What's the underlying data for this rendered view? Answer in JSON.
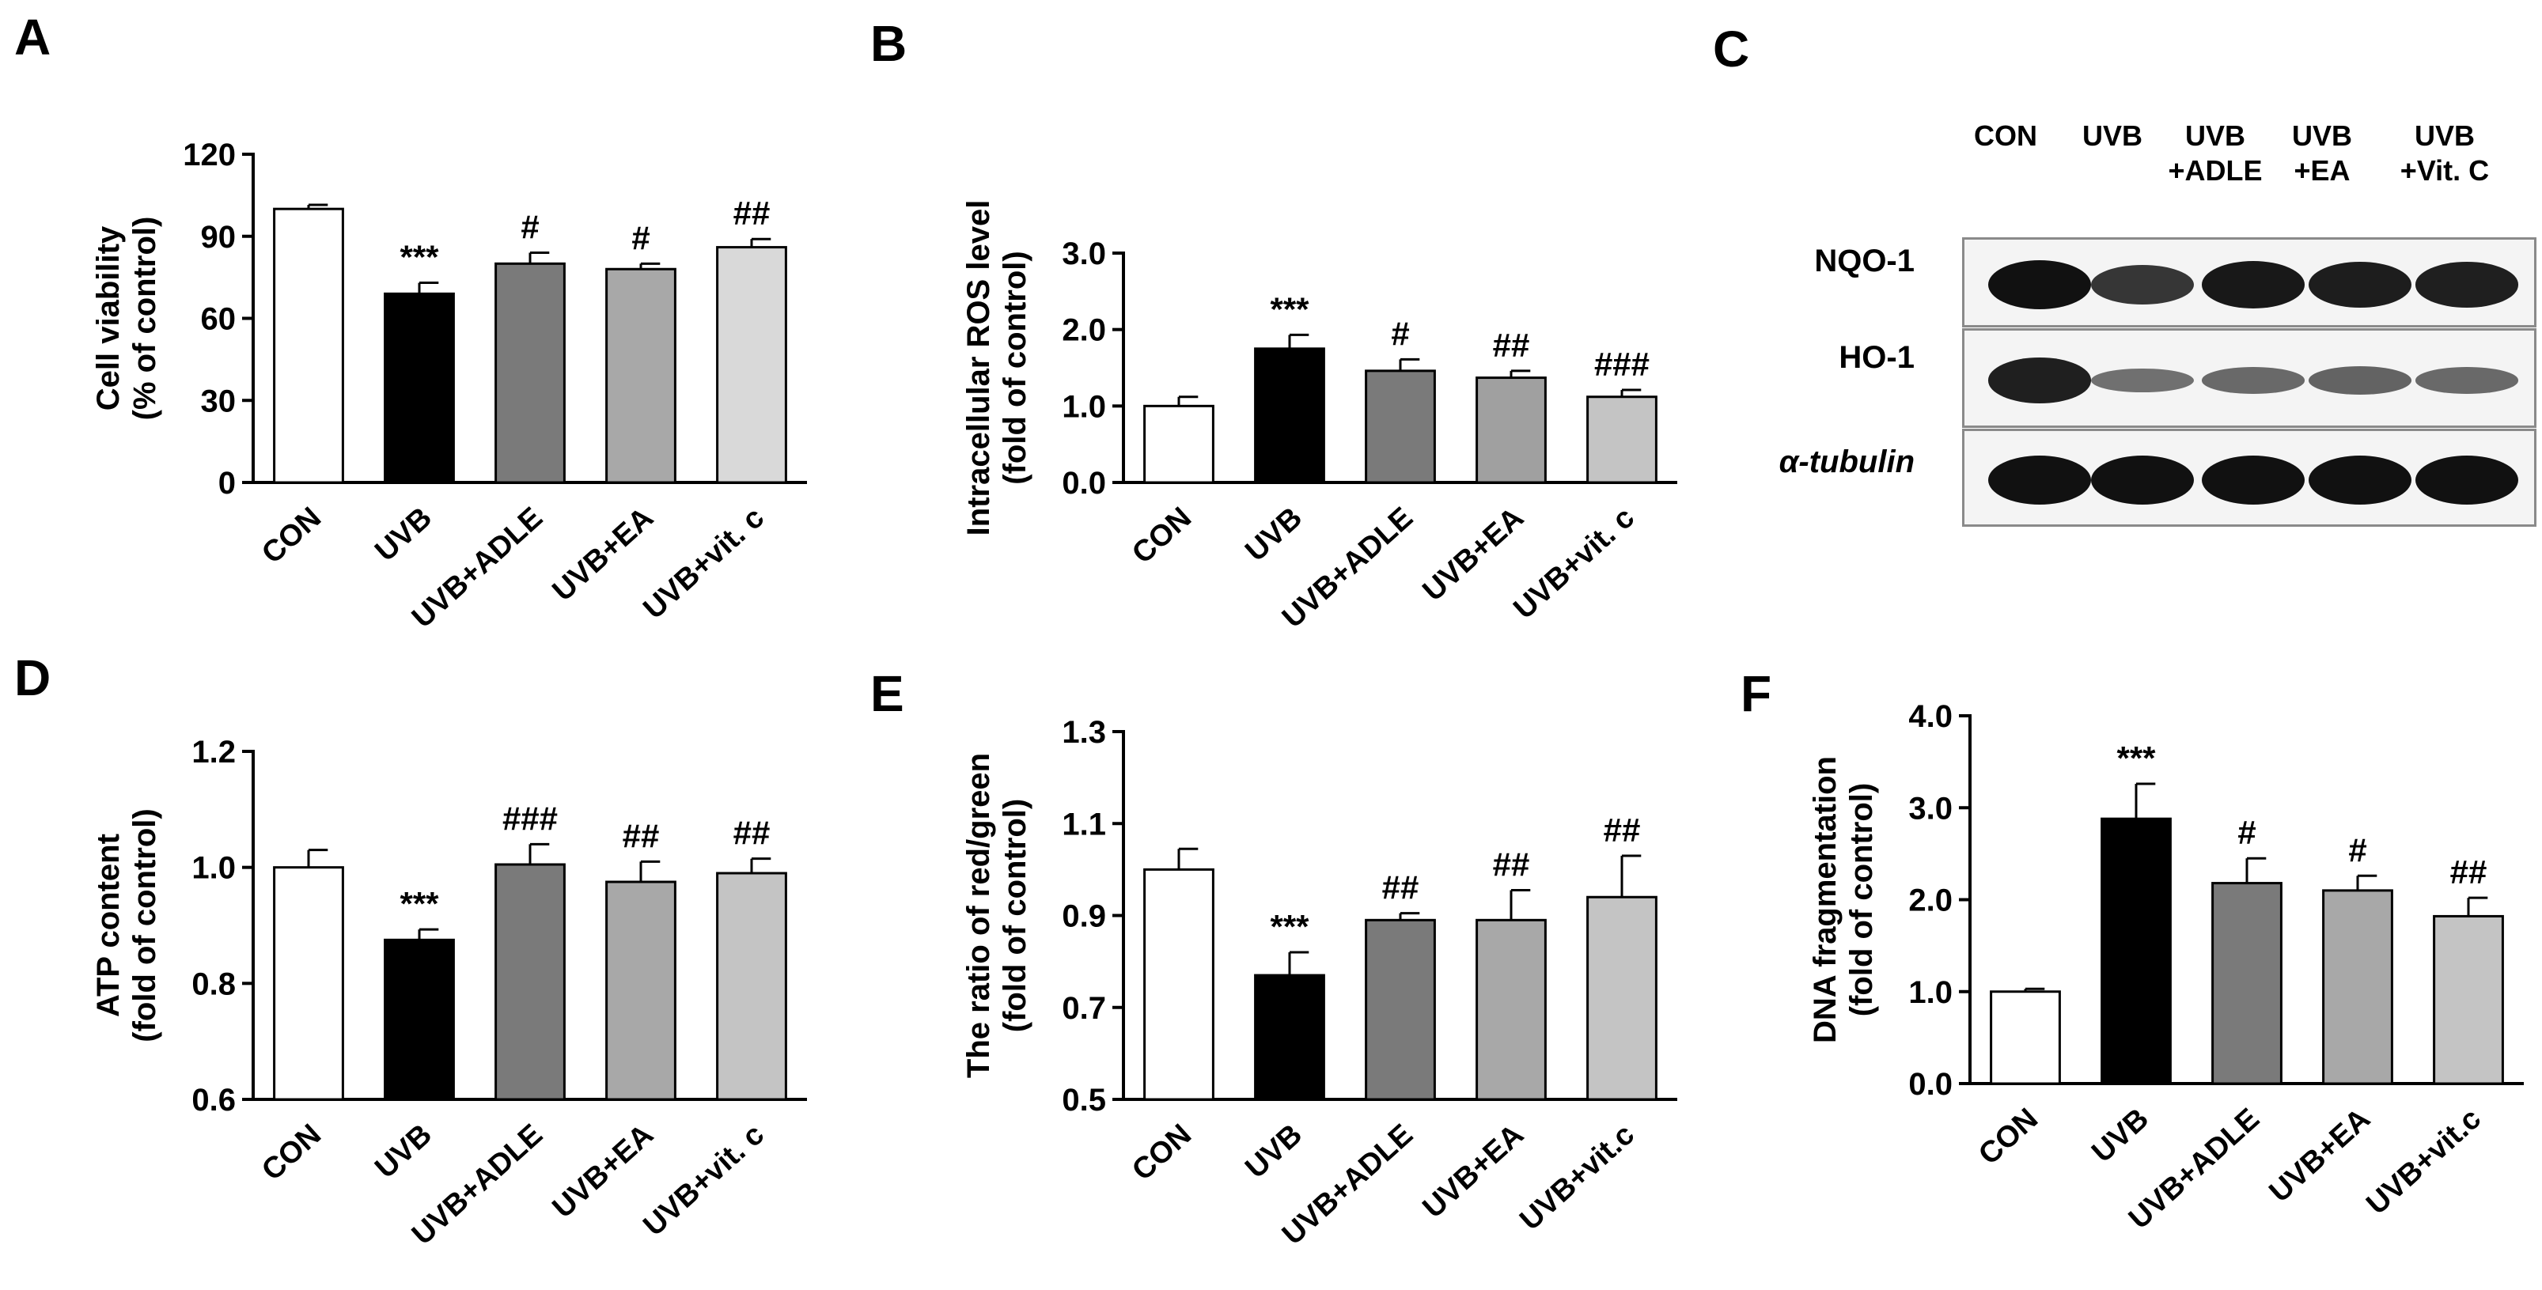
{
  "panels": {
    "A": {
      "letter": "A"
    },
    "B": {
      "letter": "B"
    },
    "C": {
      "letter": "C"
    },
    "D": {
      "letter": "D"
    },
    "E": {
      "letter": "E"
    },
    "F": {
      "letter": "F"
    }
  },
  "chart_data": [
    {
      "id": "A",
      "type": "bar",
      "categories": [
        "CON",
        "UVB",
        "UVB+ADLE",
        "UVB+EA",
        "UVB+vit. c"
      ],
      "values": [
        100,
        69,
        80,
        78,
        86
      ],
      "errors": [
        1.5,
        4,
        4,
        2,
        3
      ],
      "annotations": [
        "",
        "***",
        "#",
        "#",
        "##"
      ],
      "colors": [
        "#ffffff",
        "#000000",
        "#7a7a7a",
        "#a8a8a8",
        "#d9d9d9"
      ],
      "ylabel": [
        "Cell viability",
        "(% of control)"
      ],
      "ylim": [
        0,
        120
      ],
      "yticks": [
        "0",
        "30",
        "60",
        "90",
        "120"
      ],
      "ytick_values": [
        0,
        30,
        60,
        90,
        120
      ]
    },
    {
      "id": "B",
      "type": "bar",
      "categories": [
        "CON",
        "UVB",
        "UVB+ADLE",
        "UVB+EA",
        "UVB+vit. c"
      ],
      "values": [
        1.0,
        1.75,
        1.46,
        1.37,
        1.12
      ],
      "errors": [
        0.12,
        0.18,
        0.15,
        0.09,
        0.09
      ],
      "annotations": [
        "",
        "***",
        "#",
        "##",
        "###"
      ],
      "colors": [
        "#ffffff",
        "#000000",
        "#7a7a7a",
        "#a0a0a0",
        "#c4c4c4"
      ],
      "ylabel": [
        "Intracellular ROS level",
        "(fold of control)"
      ],
      "ylim": [
        0,
        3
      ],
      "yticks": [
        "0.0",
        "1.0",
        "2.0",
        "3.0"
      ],
      "ytick_values": [
        0,
        1,
        2,
        3
      ]
    },
    {
      "id": "D",
      "type": "bar",
      "categories": [
        "CON",
        "UVB",
        "UVB+ADLE",
        "UVB+EA",
        "UVB+vit. c"
      ],
      "values": [
        1.0,
        0.875,
        1.005,
        0.975,
        0.99
      ],
      "errors": [
        0.03,
        0.018,
        0.035,
        0.035,
        0.025
      ],
      "annotations": [
        "",
        "***",
        "###",
        "##",
        "##"
      ],
      "colors": [
        "#ffffff",
        "#000000",
        "#7a7a7a",
        "#a8a8a8",
        "#c4c4c4"
      ],
      "ylabel": [
        "ATP content",
        "(fold of control)"
      ],
      "ylim": [
        0.6,
        1.2
      ],
      "yticks": [
        "0.6",
        "0.8",
        "1.0",
        "1.2"
      ],
      "ytick_values": [
        0.6,
        0.8,
        1.0,
        1.2
      ]
    },
    {
      "id": "E",
      "type": "bar",
      "categories": [
        "CON",
        "UVB",
        "UVB+ADLE",
        "UVB+EA",
        "UVB+vit.c"
      ],
      "values": [
        1.0,
        0.77,
        0.89,
        0.89,
        0.94
      ],
      "errors": [
        0.045,
        0.05,
        0.015,
        0.065,
        0.09
      ],
      "annotations": [
        "",
        "***",
        "##",
        "##",
        "##"
      ],
      "colors": [
        "#ffffff",
        "#000000",
        "#7a7a7a",
        "#a8a8a8",
        "#c4c4c4"
      ],
      "ylabel": [
        "The ratio of red/green",
        "(fold of control)"
      ],
      "ylim": [
        0.5,
        1.3
      ],
      "yticks": [
        "0.5",
        "0.7",
        "0.9",
        "1.1",
        "1.3"
      ],
      "ytick_values": [
        0.5,
        0.7,
        0.9,
        1.1,
        1.3
      ]
    },
    {
      "id": "F",
      "type": "bar",
      "categories": [
        "CON",
        "UVB",
        "UVB+ADLE",
        "UVB+EA",
        "UVB+vit.c"
      ],
      "values": [
        1.0,
        2.88,
        2.18,
        2.1,
        1.82
      ],
      "errors": [
        0.03,
        0.38,
        0.27,
        0.16,
        0.2
      ],
      "annotations": [
        "",
        "***",
        "#",
        "#",
        "##"
      ],
      "colors": [
        "#ffffff",
        "#000000",
        "#7a7a7a",
        "#a8a8a8",
        "#c4c4c4"
      ],
      "ylabel": [
        "DNA fragmentation",
        "(fold of control)"
      ],
      "ylim": [
        0,
        4
      ],
      "yticks": [
        "0.0",
        "1.0",
        "2.0",
        "3.0",
        "4.0"
      ],
      "ytick_values": [
        0,
        1,
        2,
        3,
        4
      ]
    }
  ],
  "western_blot": {
    "lanes": [
      "CON",
      "UVB",
      "UVB\n+ADLE",
      "UVB\n+EA",
      "UVB\n+Vit. C"
    ],
    "rows": [
      {
        "label": "NQO-1",
        "intensity": [
          1.0,
          0.75,
          0.95,
          0.92,
          0.9
        ]
      },
      {
        "label": "HO-1",
        "intensity": [
          0.9,
          0.35,
          0.4,
          0.45,
          0.4
        ]
      },
      {
        "label": "α-tubulin",
        "intensity": [
          1.0,
          1.0,
          1.0,
          1.0,
          1.0
        ]
      }
    ]
  }
}
